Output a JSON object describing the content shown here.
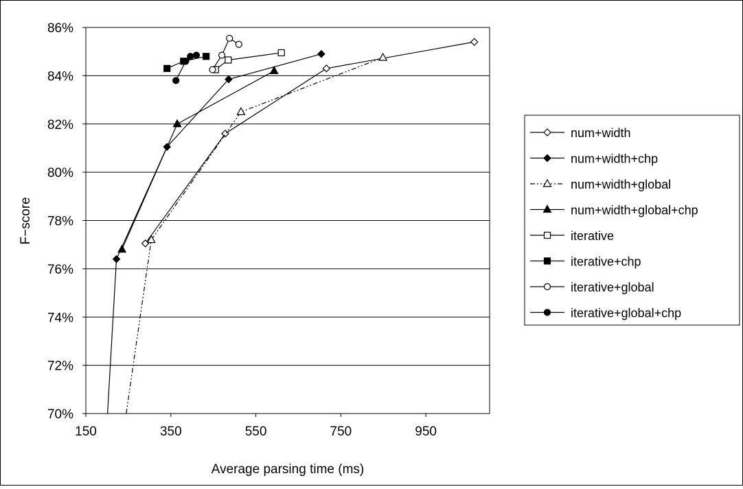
{
  "chart_data": {
    "type": "line",
    "title": "",
    "xlabel": "Average parsing time (ms)",
    "ylabel": "F−score",
    "xlim": [
      150,
      1100
    ],
    "ylim": [
      70,
      86
    ],
    "xticks": [
      "150",
      "350",
      "550",
      "750",
      "950"
    ],
    "xtick_values": [
      150,
      350,
      550,
      750,
      950
    ],
    "yticks": [
      "70%",
      "72%",
      "74%",
      "76%",
      "78%",
      "80%",
      "82%",
      "84%",
      "86%"
    ],
    "ytick_values": [
      70,
      72,
      74,
      76,
      78,
      80,
      82,
      84,
      86
    ],
    "grid": "horizontal",
    "legend_position": "right",
    "series": [
      {
        "name": "num+width",
        "marker": "diamond-open",
        "dash": "solid",
        "points": [
          [
            290,
            77.05
          ],
          [
            478,
            81.6
          ],
          [
            716,
            84.3
          ],
          [
            1064,
            85.4
          ]
        ]
      },
      {
        "name": "num+width+chp",
        "marker": "diamond-filled",
        "dash": "solid",
        "points": [
          [
            222,
            76.4
          ],
          [
            341,
            81.05
          ],
          [
            486,
            83.85
          ],
          [
            704,
            84.9
          ]
        ]
      },
      {
        "name": "num+width+global",
        "marker": "triangle-open",
        "dash": "dashdotdot",
        "points": [
          [
            304,
            77.2
          ],
          [
            515,
            82.5
          ],
          [
            849,
            84.75
          ]
        ]
      },
      {
        "name": "num+width+global+chp",
        "marker": "triangle-filled",
        "dash": "solid",
        "points": [
          [
            235,
            76.8
          ],
          [
            365,
            82.0
          ],
          [
            593,
            84.2
          ]
        ]
      },
      {
        "name": "iterative",
        "marker": "square-open",
        "dash": "solid",
        "points": [
          [
            455,
            84.25
          ],
          [
            485,
            84.65
          ],
          [
            610,
            84.95
          ]
        ]
      },
      {
        "name": "iterative+chp",
        "marker": "square-filled",
        "dash": "solid",
        "points": [
          [
            341,
            84.3
          ],
          [
            380,
            84.6
          ],
          [
            433,
            84.8
          ]
        ]
      },
      {
        "name": "iterative+global",
        "marker": "circle-open",
        "dash": "solid",
        "points": [
          [
            448,
            84.25
          ],
          [
            470,
            84.85
          ],
          [
            488,
            85.55
          ],
          [
            510,
            85.3
          ]
        ]
      },
      {
        "name": "iterative+global+chp",
        "marker": "circle-filled",
        "dash": "solid",
        "points": [
          [
            362,
            83.8
          ],
          [
            385,
            84.6
          ],
          [
            396,
            84.8
          ],
          [
            410,
            84.85
          ]
        ]
      }
    ],
    "extensions": [
      {
        "series": "num+width+chp",
        "dash": "solid",
        "points": [
          [
            201,
            70.0
          ],
          [
            222,
            76.4
          ]
        ]
      },
      {
        "series": "num+width+global",
        "dash": "dashdotdot",
        "points": [
          [
            245,
            70.0
          ],
          [
            304,
            77.2
          ]
        ]
      }
    ]
  }
}
